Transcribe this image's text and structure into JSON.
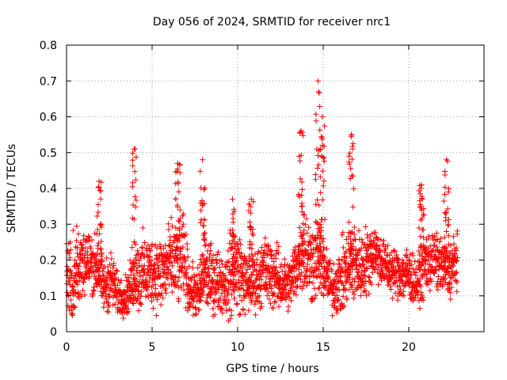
{
  "chart_data": {
    "type": "scatter",
    "title": "Day 056 of 2024, SRMTID for receiver nrc1",
    "xlabel": "GPS time / hours",
    "ylabel": "SRMTID / TECUs",
    "xlim": [
      0,
      24.4
    ],
    "ylim": [
      0,
      0.8
    ],
    "x_ticks": [
      0,
      5,
      10,
      15,
      20
    ],
    "x_tick_labels": [
      "0",
      "5",
      "10",
      "15",
      "20"
    ],
    "y_ticks": [
      0,
      0.1,
      0.2,
      0.3,
      0.4,
      0.5,
      0.6,
      0.7,
      0.8
    ],
    "y_tick_labels": [
      "0",
      "0.1",
      "0.2",
      "0.3",
      "0.4",
      "0.5",
      "0.6",
      "0.7",
      "0.8"
    ],
    "grid": true,
    "marker": "+",
    "marker_color": "#ff0000",
    "point_count": 2500,
    "time_range_hours": [
      0,
      22.85
    ],
    "base_band": [
      0.05,
      0.3
    ],
    "activity_envelope": {
      "x": [
        0,
        0.3,
        0.6,
        1.0,
        1.5,
        1.9,
        2.2,
        2.6,
        3.0,
        3.5,
        3.8,
        4.0,
        4.3,
        5.0,
        5.5,
        6.0,
        6.5,
        6.8,
        7.2,
        7.8,
        8.0,
        8.3,
        9.0,
        9.5,
        10.0,
        10.5,
        11.0,
        11.5,
        12.0,
        12.5,
        13.0,
        13.5,
        13.8,
        14.2,
        14.5,
        14.75,
        15.0,
        15.5,
        16.0,
        16.5,
        16.8,
        17.2,
        17.6,
        18.0,
        18.5,
        19.0,
        19.5,
        20.0,
        20.5,
        20.9,
        21.4,
        22.0,
        22.3,
        22.85
      ],
      "y_center": [
        0.17,
        0.14,
        0.16,
        0.2,
        0.19,
        0.17,
        0.12,
        0.15,
        0.1,
        0.1,
        0.13,
        0.15,
        0.16,
        0.17,
        0.16,
        0.19,
        0.19,
        0.21,
        0.12,
        0.1,
        0.17,
        0.15,
        0.14,
        0.13,
        0.18,
        0.13,
        0.14,
        0.17,
        0.16,
        0.14,
        0.13,
        0.19,
        0.24,
        0.2,
        0.19,
        0.21,
        0.18,
        0.12,
        0.14,
        0.18,
        0.19,
        0.18,
        0.2,
        0.23,
        0.19,
        0.17,
        0.16,
        0.16,
        0.13,
        0.19,
        0.2,
        0.18,
        0.17,
        0.2
      ],
      "y_spread": [
        0.06,
        0.08,
        0.09,
        0.08,
        0.06,
        0.06,
        0.05,
        0.06,
        0.04,
        0.04,
        0.05,
        0.06,
        0.08,
        0.07,
        0.08,
        0.08,
        0.09,
        0.09,
        0.05,
        0.05,
        0.08,
        0.07,
        0.06,
        0.07,
        0.09,
        0.06,
        0.06,
        0.07,
        0.07,
        0.06,
        0.05,
        0.07,
        0.09,
        0.09,
        0.08,
        0.09,
        0.07,
        0.05,
        0.07,
        0.08,
        0.08,
        0.07,
        0.07,
        0.06,
        0.05,
        0.05,
        0.05,
        0.06,
        0.04,
        0.07,
        0.06,
        0.05,
        0.06,
        0.06
      ]
    },
    "spikes": [
      {
        "x": 1.9,
        "y_max": 0.42
      },
      {
        "x": 3.95,
        "y_max": 0.51
      },
      {
        "x": 6.5,
        "y_max": 0.47
      },
      {
        "x": 7.95,
        "y_max": 0.48
      },
      {
        "x": 9.7,
        "y_max": 0.37
      },
      {
        "x": 10.8,
        "y_max": 0.37
      },
      {
        "x": 13.7,
        "y_max": 0.56
      },
      {
        "x": 14.7,
        "y_max": 0.7
      },
      {
        "x": 14.95,
        "y_max": 0.6
      },
      {
        "x": 16.65,
        "y_max": 0.55
      },
      {
        "x": 20.75,
        "y_max": 0.41
      },
      {
        "x": 22.2,
        "y_max": 0.48
      }
    ]
  }
}
